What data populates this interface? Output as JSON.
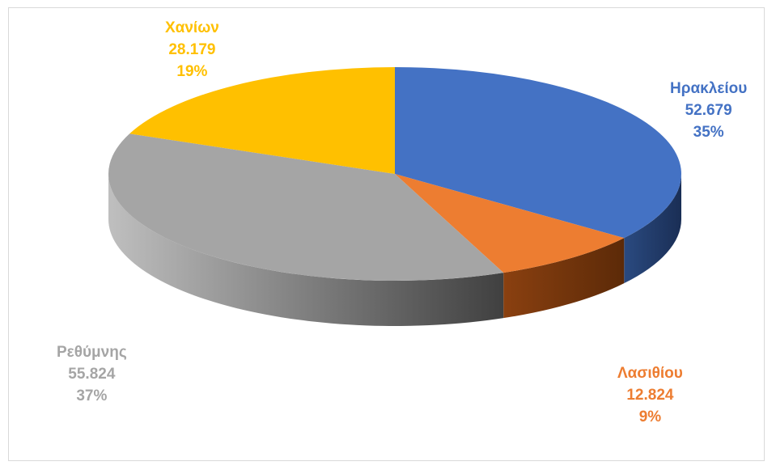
{
  "chart_data": {
    "type": "pie",
    "style": "3d",
    "legend": "none",
    "slices": [
      {
        "name": "Ηρακλείου",
        "value": "52.679",
        "percent": "35%",
        "color": "#4472c4",
        "side_color": "#1f3864"
      },
      {
        "name": "Λασιθίου",
        "value": "12.824",
        "percent": "9%",
        "color": "#ed7d31",
        "side_color": "#843c0c"
      },
      {
        "name": "Ρεθύμνης",
        "value": "55.824",
        "percent": "37%",
        "color": "#a5a5a5",
        "side_color": "#595959"
      },
      {
        "name": "Χανίων",
        "value": "28.179",
        "percent": "19%",
        "color": "#ffc000",
        "side_color": "#7f6000"
      }
    ]
  }
}
